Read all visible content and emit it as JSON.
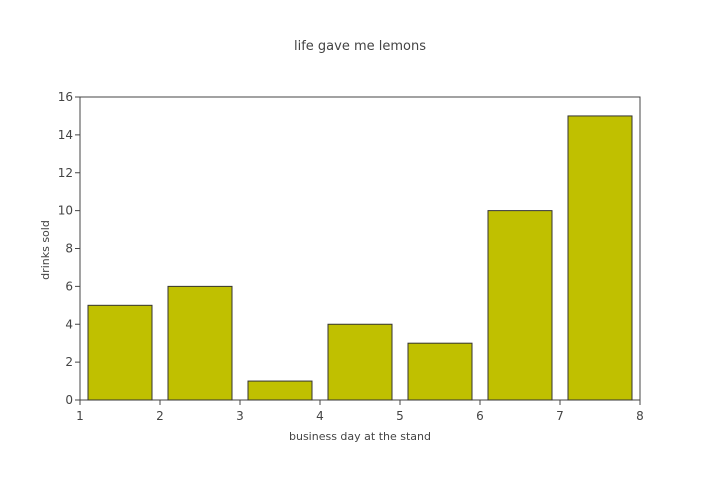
{
  "chart_data": {
    "type": "bar",
    "title": "life gave me lemons",
    "xlabel": "business day at the stand",
    "ylabel": "drinks sold",
    "x": [
      1,
      2,
      3,
      4,
      5,
      6,
      7
    ],
    "values": [
      5,
      6,
      1,
      4,
      3,
      10,
      15
    ],
    "xlim": [
      1,
      8
    ],
    "ylim": [
      0,
      16
    ],
    "xticks": [
      1,
      2,
      3,
      4,
      5,
      6,
      7,
      8
    ],
    "yticks": [
      0,
      2,
      4,
      6,
      8,
      10,
      12,
      14,
      16
    ],
    "bar_color": "#c0c000",
    "bar_edge_color": "#333333",
    "grid": false,
    "legend": "none"
  }
}
